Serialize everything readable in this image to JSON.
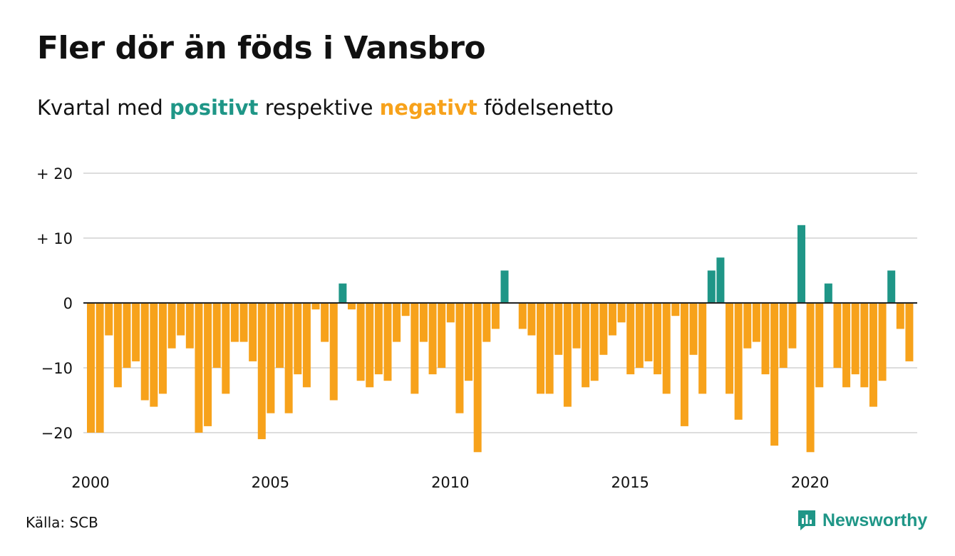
{
  "title": "Fler dör än föds i Vansbro",
  "subtitle": {
    "prefix": "Kvartal med",
    "positive": "positivt",
    "middle": "respektive",
    "negative": "negativt",
    "suffix": "födelsenetto"
  },
  "source": "Källa: SCB",
  "brand": "Newsworthy",
  "colors": {
    "positive": "#1f9687",
    "negative": "#f7a21b",
    "grid": "#dddddd"
  },
  "chart_data": {
    "type": "bar",
    "x_start": "2000 Q1",
    "frequency": "quarterly",
    "values": [
      -20,
      -20,
      -5,
      -13,
      -10,
      -9,
      -15,
      -16,
      -14,
      -7,
      -5,
      -7,
      -20,
      -19,
      -10,
      -14,
      -6,
      -6,
      -9,
      -21,
      -17,
      -10,
      -17,
      -11,
      -13,
      -1,
      -6,
      -15,
      3,
      -1,
      -12,
      -13,
      -11,
      -12,
      -6,
      -2,
      -14,
      -6,
      -11,
      -10,
      -3,
      -17,
      -12,
      -23,
      -6,
      -4,
      5,
      0,
      -4,
      -5,
      -14,
      -14,
      -8,
      -16,
      -7,
      -13,
      -12,
      -8,
      -5,
      -3,
      -11,
      -10,
      -9,
      -11,
      -14,
      -2,
      -19,
      -8,
      -14,
      5,
      7,
      -14,
      -18,
      -7,
      -6,
      -11,
      -22,
      -10,
      -7,
      12,
      -23,
      -13,
      3,
      -10,
      -13,
      -11,
      -13,
      -16,
      -12,
      5,
      -4,
      -9
    ],
    "y_ticks": [
      20,
      10,
      0,
      -10,
      -20
    ],
    "y_tick_labels": [
      "+ 20",
      "+ 10",
      "0",
      "−10",
      "−20"
    ],
    "x_ticks": [
      2000,
      2005,
      2010,
      2015,
      2020
    ],
    "x_tick_labels": [
      "2000",
      "2005",
      "2010",
      "2015",
      "2020"
    ],
    "ylim": [
      -25,
      20
    ],
    "grid": true
  }
}
